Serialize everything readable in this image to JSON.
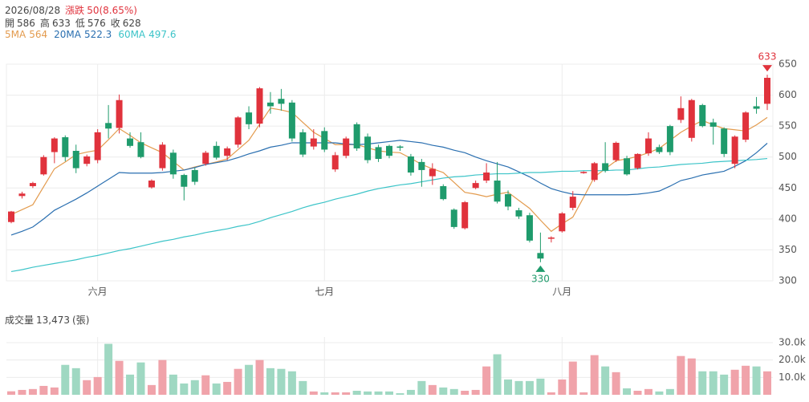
{
  "header": {
    "date": "2026/08/28",
    "change_label": "漲跌",
    "change": "50(8.65%)",
    "open_label": "開",
    "high_label": "高",
    "low_label": "低",
    "close_label": "收"
  },
  "chart_data": [
    {
      "type": "candlestick",
      "up_color": "#e0323c",
      "down_color": "#1f9b6c",
      "ylim": [
        300,
        650
      ],
      "yticks": [
        300,
        350,
        400,
        450,
        500,
        550,
        600,
        650
      ],
      "grid": true,
      "categories": [
        null,
        null,
        null,
        null,
        null,
        null,
        null,
        null,
        "六月",
        null,
        null,
        null,
        null,
        null,
        null,
        null,
        null,
        null,
        null,
        null,
        null,
        null,
        null,
        null,
        null,
        null,
        null,
        null,
        null,
        "七月",
        null,
        null,
        null,
        null,
        null,
        null,
        null,
        null,
        null,
        null,
        null,
        null,
        null,
        null,
        null,
        null,
        null,
        null,
        null,
        null,
        null,
        "八月",
        null,
        null,
        null,
        null,
        null,
        null,
        null,
        null,
        null,
        null,
        null,
        null,
        null,
        null,
        null,
        null,
        null,
        null,
        null
      ],
      "open": [
        395,
        437,
        453,
        472,
        508,
        532,
        510,
        489,
        495,
        555,
        547,
        530,
        524,
        451,
        482,
        507,
        471,
        479,
        489,
        518,
        502,
        520,
        572,
        554,
        588,
        594,
        588,
        540,
        517,
        542,
        480,
        502,
        553,
        533,
        516,
        518,
        517,
        501,
        492,
        469,
        453,
        415,
        385,
        450,
        462,
        462,
        440,
        414,
        406,
        345,
        368,
        380,
        418,
        474,
        463,
        490,
        495,
        498,
        482,
        506,
        516,
        550,
        560,
        531,
        584,
        556,
        546,
        489,
        528,
        582,
        586
      ],
      "high": [
        413,
        444,
        460,
        503,
        532,
        535,
        520,
        504,
        545,
        584,
        601,
        540,
        540,
        464,
        524,
        512,
        473,
        483,
        510,
        525,
        517,
        566,
        582,
        613,
        605,
        610,
        592,
        545,
        545,
        548,
        508,
        533,
        556,
        538,
        520,
        520,
        519,
        505,
        497,
        490,
        456,
        417,
        429,
        462,
        490,
        492,
        446,
        418,
        410,
        378,
        372,
        411,
        445,
        477,
        492,
        524,
        525,
        502,
        506,
        540,
        520,
        552,
        598,
        594,
        586,
        562,
        548,
        535,
        574,
        597,
        633
      ],
      "low": [
        393,
        433,
        450,
        470,
        490,
        493,
        474,
        485,
        490,
        530,
        538,
        515,
        498,
        449,
        478,
        465,
        430,
        455,
        486,
        496,
        495,
        515,
        545,
        548,
        570,
        575,
        525,
        500,
        512,
        508,
        476,
        498,
        510,
        490,
        492,
        498,
        510,
        470,
        452,
        455,
        430,
        384,
        383,
        448,
        458,
        425,
        414,
        400,
        362,
        330,
        362,
        378,
        414,
        473,
        460,
        475,
        492,
        470,
        480,
        502,
        505,
        503,
        555,
        525,
        548,
        520,
        500,
        482,
        524,
        570,
        576
      ],
      "close": [
        412,
        441,
        458,
        500,
        530,
        500,
        482,
        501,
        540,
        546,
        592,
        518,
        500,
        462,
        520,
        472,
        452,
        460,
        507,
        499,
        514,
        564,
        553,
        611,
        582,
        586,
        530,
        504,
        530,
        512,
        503,
        530,
        514,
        495,
        497,
        502,
        515,
        475,
        479,
        481,
        432,
        387,
        427,
        458,
        475,
        428,
        420,
        404,
        365,
        336,
        370,
        409,
        436,
        476,
        490,
        478,
        523,
        472,
        505,
        530,
        508,
        508,
        579,
        592,
        550,
        549,
        505,
        533,
        572,
        578,
        628
      ],
      "series": [
        {
          "name": "5MA",
          "color": "#e39b4e",
          "values": [
            407,
            415,
            423,
            452,
            481,
            492,
            504,
            508,
            511,
            528,
            546,
            535,
            523,
            515,
            507,
            493,
            479,
            484,
            488,
            492,
            497,
            512,
            527,
            553,
            579,
            576,
            572,
            556,
            540,
            530,
            520,
            520,
            520,
            515,
            510,
            508,
            507,
            498,
            488,
            481,
            475,
            459,
            443,
            440,
            436,
            440,
            443,
            430,
            417,
            398,
            380,
            392,
            403,
            435,
            468,
            481,
            494,
            497,
            501,
            507,
            514,
            527,
            540,
            550,
            559,
            552,
            546,
            544,
            542,
            552,
            564
          ]
        },
        {
          "name": "20MA",
          "color": "#2a6fb0",
          "values": [
            374,
            380,
            387,
            400,
            414,
            423,
            432,
            442,
            453,
            464,
            475,
            474,
            474,
            474,
            475,
            477,
            479,
            483,
            488,
            491,
            494,
            499,
            505,
            510,
            516,
            519,
            523,
            523,
            523,
            523,
            523,
            521,
            520,
            521,
            523,
            525,
            527,
            525,
            523,
            519,
            516,
            511,
            507,
            500,
            494,
            489,
            484,
            476,
            468,
            458,
            449,
            444,
            440,
            439,
            439,
            439,
            439,
            439,
            440,
            442,
            445,
            453,
            462,
            466,
            471,
            474,
            477,
            485,
            494,
            507,
            522.3
          ]
        },
        {
          "name": "60MA",
          "color": "#3cc4c8",
          "values": [
            315,
            318,
            322,
            325,
            328,
            331,
            334,
            338,
            341,
            345,
            349,
            352,
            356,
            360,
            364,
            367,
            371,
            374,
            378,
            381,
            384,
            388,
            391,
            396,
            402,
            407,
            412,
            418,
            423,
            427,
            432,
            436,
            440,
            445,
            449,
            452,
            455,
            457,
            460,
            463,
            466,
            468,
            469,
            471,
            472,
            473,
            473,
            474,
            475,
            475,
            476,
            477,
            477,
            478,
            478,
            478,
            479,
            479,
            481,
            483,
            484,
            486,
            488,
            489,
            490,
            492,
            493,
            494,
            495,
            496,
            497.6
          ]
        }
      ]
    },
    {
      "type": "bar",
      "title": "成交量",
      "value_text": "13,473",
      "unit": "(張)",
      "ylim": [
        0,
        30000
      ],
      "grid": true,
      "yticks": [
        {
          "value": 10000,
          "label": "10.0k"
        },
        {
          "value": 20000,
          "label": "20.0k"
        },
        {
          "value": 30000,
          "label": "30.0k"
        }
      ],
      "values": [
        2000,
        2800,
        3300,
        5100,
        4200,
        17200,
        15300,
        8400,
        10200,
        29300,
        19500,
        11600,
        18600,
        5600,
        20000,
        11600,
        6500,
        8400,
        11200,
        6500,
        7400,
        14900,
        17200,
        20000,
        15300,
        14900,
        13500,
        7900,
        1900,
        1400,
        1400,
        1400,
        2300,
        1900,
        1900,
        1900,
        900,
        2800,
        7900,
        5600,
        4200,
        3300,
        2300,
        2800,
        16300,
        23300,
        8800,
        7900,
        7900,
        9300,
        1400,
        8800,
        19100,
        1400,
        22800,
        16300,
        13000,
        3700,
        2300,
        3300,
        1900,
        3300,
        22300,
        20900,
        13500,
        13500,
        11600,
        14400,
        16700,
        16300,
        13473
      ]
    }
  ]
}
